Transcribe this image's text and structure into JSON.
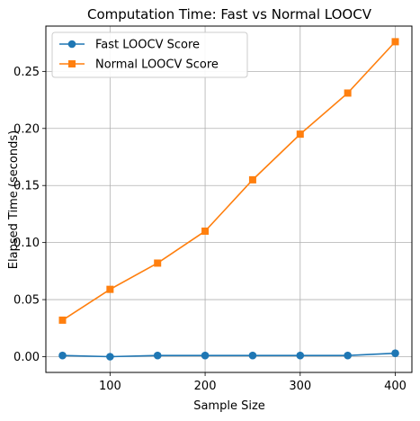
{
  "chart_data": {
    "type": "line",
    "title": "Computation Time: Fast vs Normal LOOCV",
    "xlabel": "Sample Size",
    "ylabel": "Elapsed Time (seconds)",
    "x": [
      50,
      100,
      150,
      200,
      250,
      300,
      350,
      400
    ],
    "xlim": [
      32.5,
      417.5
    ],
    "ylim": [
      -0.0138,
      0.2897
    ],
    "xticks": [
      100,
      200,
      300,
      400
    ],
    "xtick_labels": [
      "100",
      "200",
      "300",
      "400"
    ],
    "yticks": [
      0,
      0.05,
      0.1,
      0.15,
      0.2,
      0.25
    ],
    "ytick_labels": [
      "0.00",
      "0.05",
      "0.10",
      "0.15",
      "0.20",
      "0.25"
    ],
    "grid": true,
    "legend_position": "top-left",
    "series": [
      {
        "name": "Fast LOOCV Score",
        "color": "#1f77b4",
        "marker": "circle",
        "values": [
          0.001,
          0.0,
          0.001,
          0.001,
          0.001,
          0.001,
          0.001,
          0.003
        ]
      },
      {
        "name": "Normal LOOCV Score",
        "color": "#ff7f0e",
        "marker": "square",
        "values": [
          0.032,
          0.059,
          0.082,
          0.11,
          0.155,
          0.195,
          0.231,
          0.276
        ]
      }
    ]
  }
}
